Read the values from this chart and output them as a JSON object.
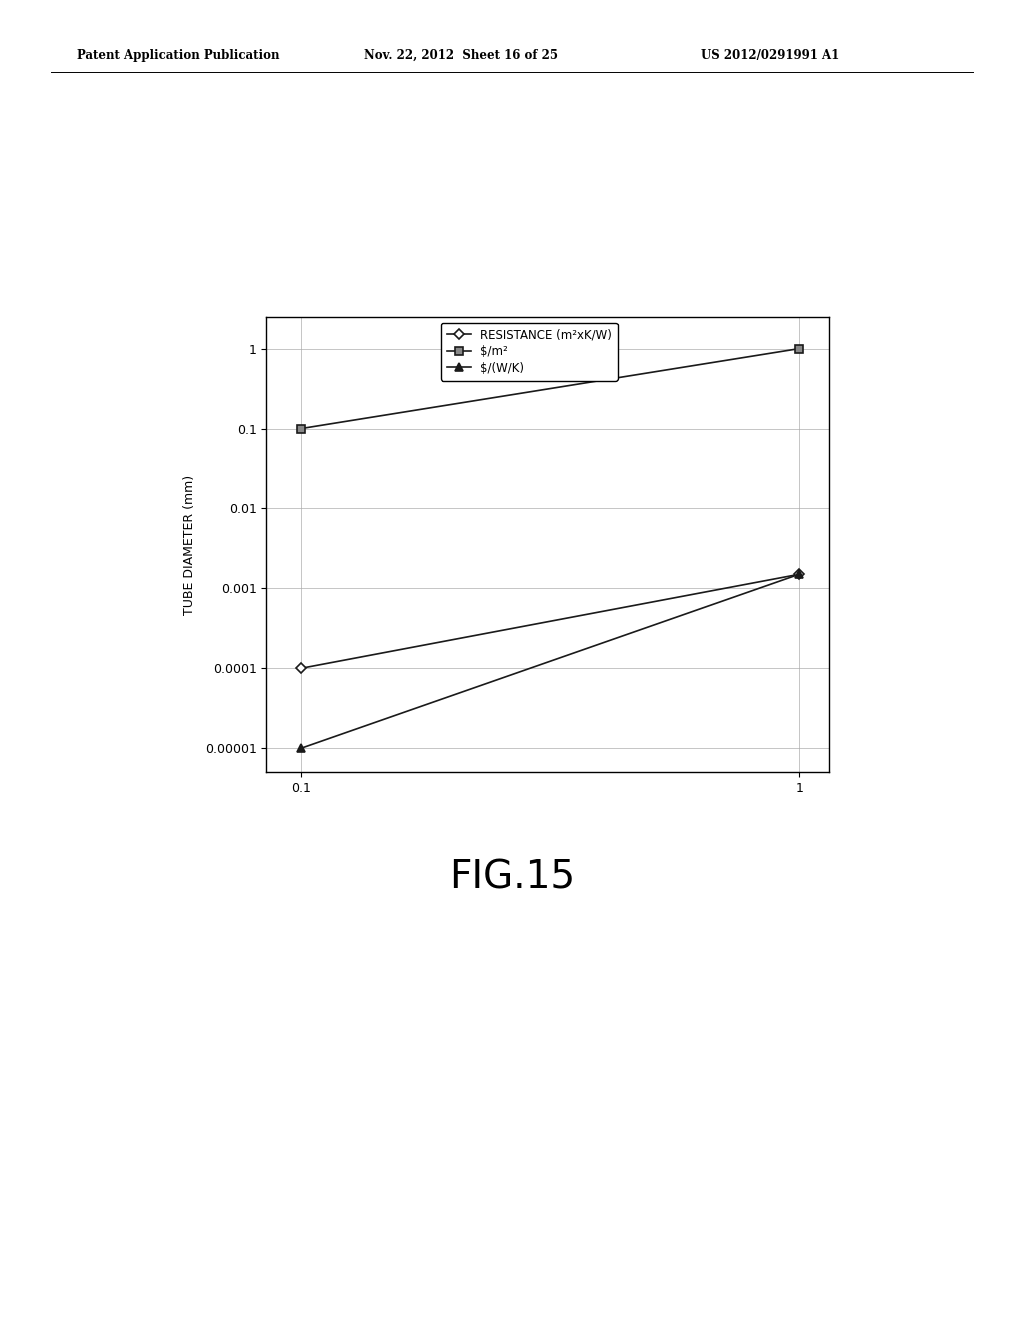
{
  "header_left": "Patent Application Publication",
  "header_center": "Nov. 22, 2012  Sheet 16 of 25",
  "header_right": "US 2012/0291991 A1",
  "ylabel": "TUBE DIAMETER (mm)",
  "fig_label": "FIG.15",
  "xtick_vals": [
    0.1,
    1
  ],
  "xtick_labels": [
    "0.1",
    "1"
  ],
  "ytick_vals": [
    1e-05,
    0.0001,
    0.001,
    0.01,
    0.1,
    1
  ],
  "ytick_labels": [
    "0.00001",
    "0.0001",
    "0.001",
    "0.01",
    "0.1",
    "1"
  ],
  "series": [
    {
      "label": "RESISTANCE (m²xK/W)",
      "x": [
        0.1,
        1.0
      ],
      "y": [
        0.0001,
        0.0015
      ],
      "marker": "D",
      "color": "#1a1a1a",
      "linewidth": 1.2,
      "markersize": 5,
      "mfc": "white"
    },
    {
      "label": "$/m²",
      "x": [
        0.1,
        1.0
      ],
      "y": [
        0.1,
        1.0
      ],
      "marker": "s",
      "color": "#1a1a1a",
      "linewidth": 1.2,
      "markersize": 6,
      "mfc": "#888888"
    },
    {
      "label": "$/(W/K)",
      "x": [
        0.1,
        1.0
      ],
      "y": [
        1e-05,
        0.0015
      ],
      "marker": "^",
      "color": "#1a1a1a",
      "linewidth": 1.2,
      "markersize": 6,
      "mfc": "#1a1a1a"
    }
  ],
  "background_color": "#ffffff",
  "font_color": "#000000",
  "grid_color": "#aaaaaa",
  "axis_fontsize": 9,
  "fig_label_fontsize": 28,
  "legend_fontsize": 8.5,
  "ylabel_fontsize": 9,
  "header_fontsize": 8.5
}
